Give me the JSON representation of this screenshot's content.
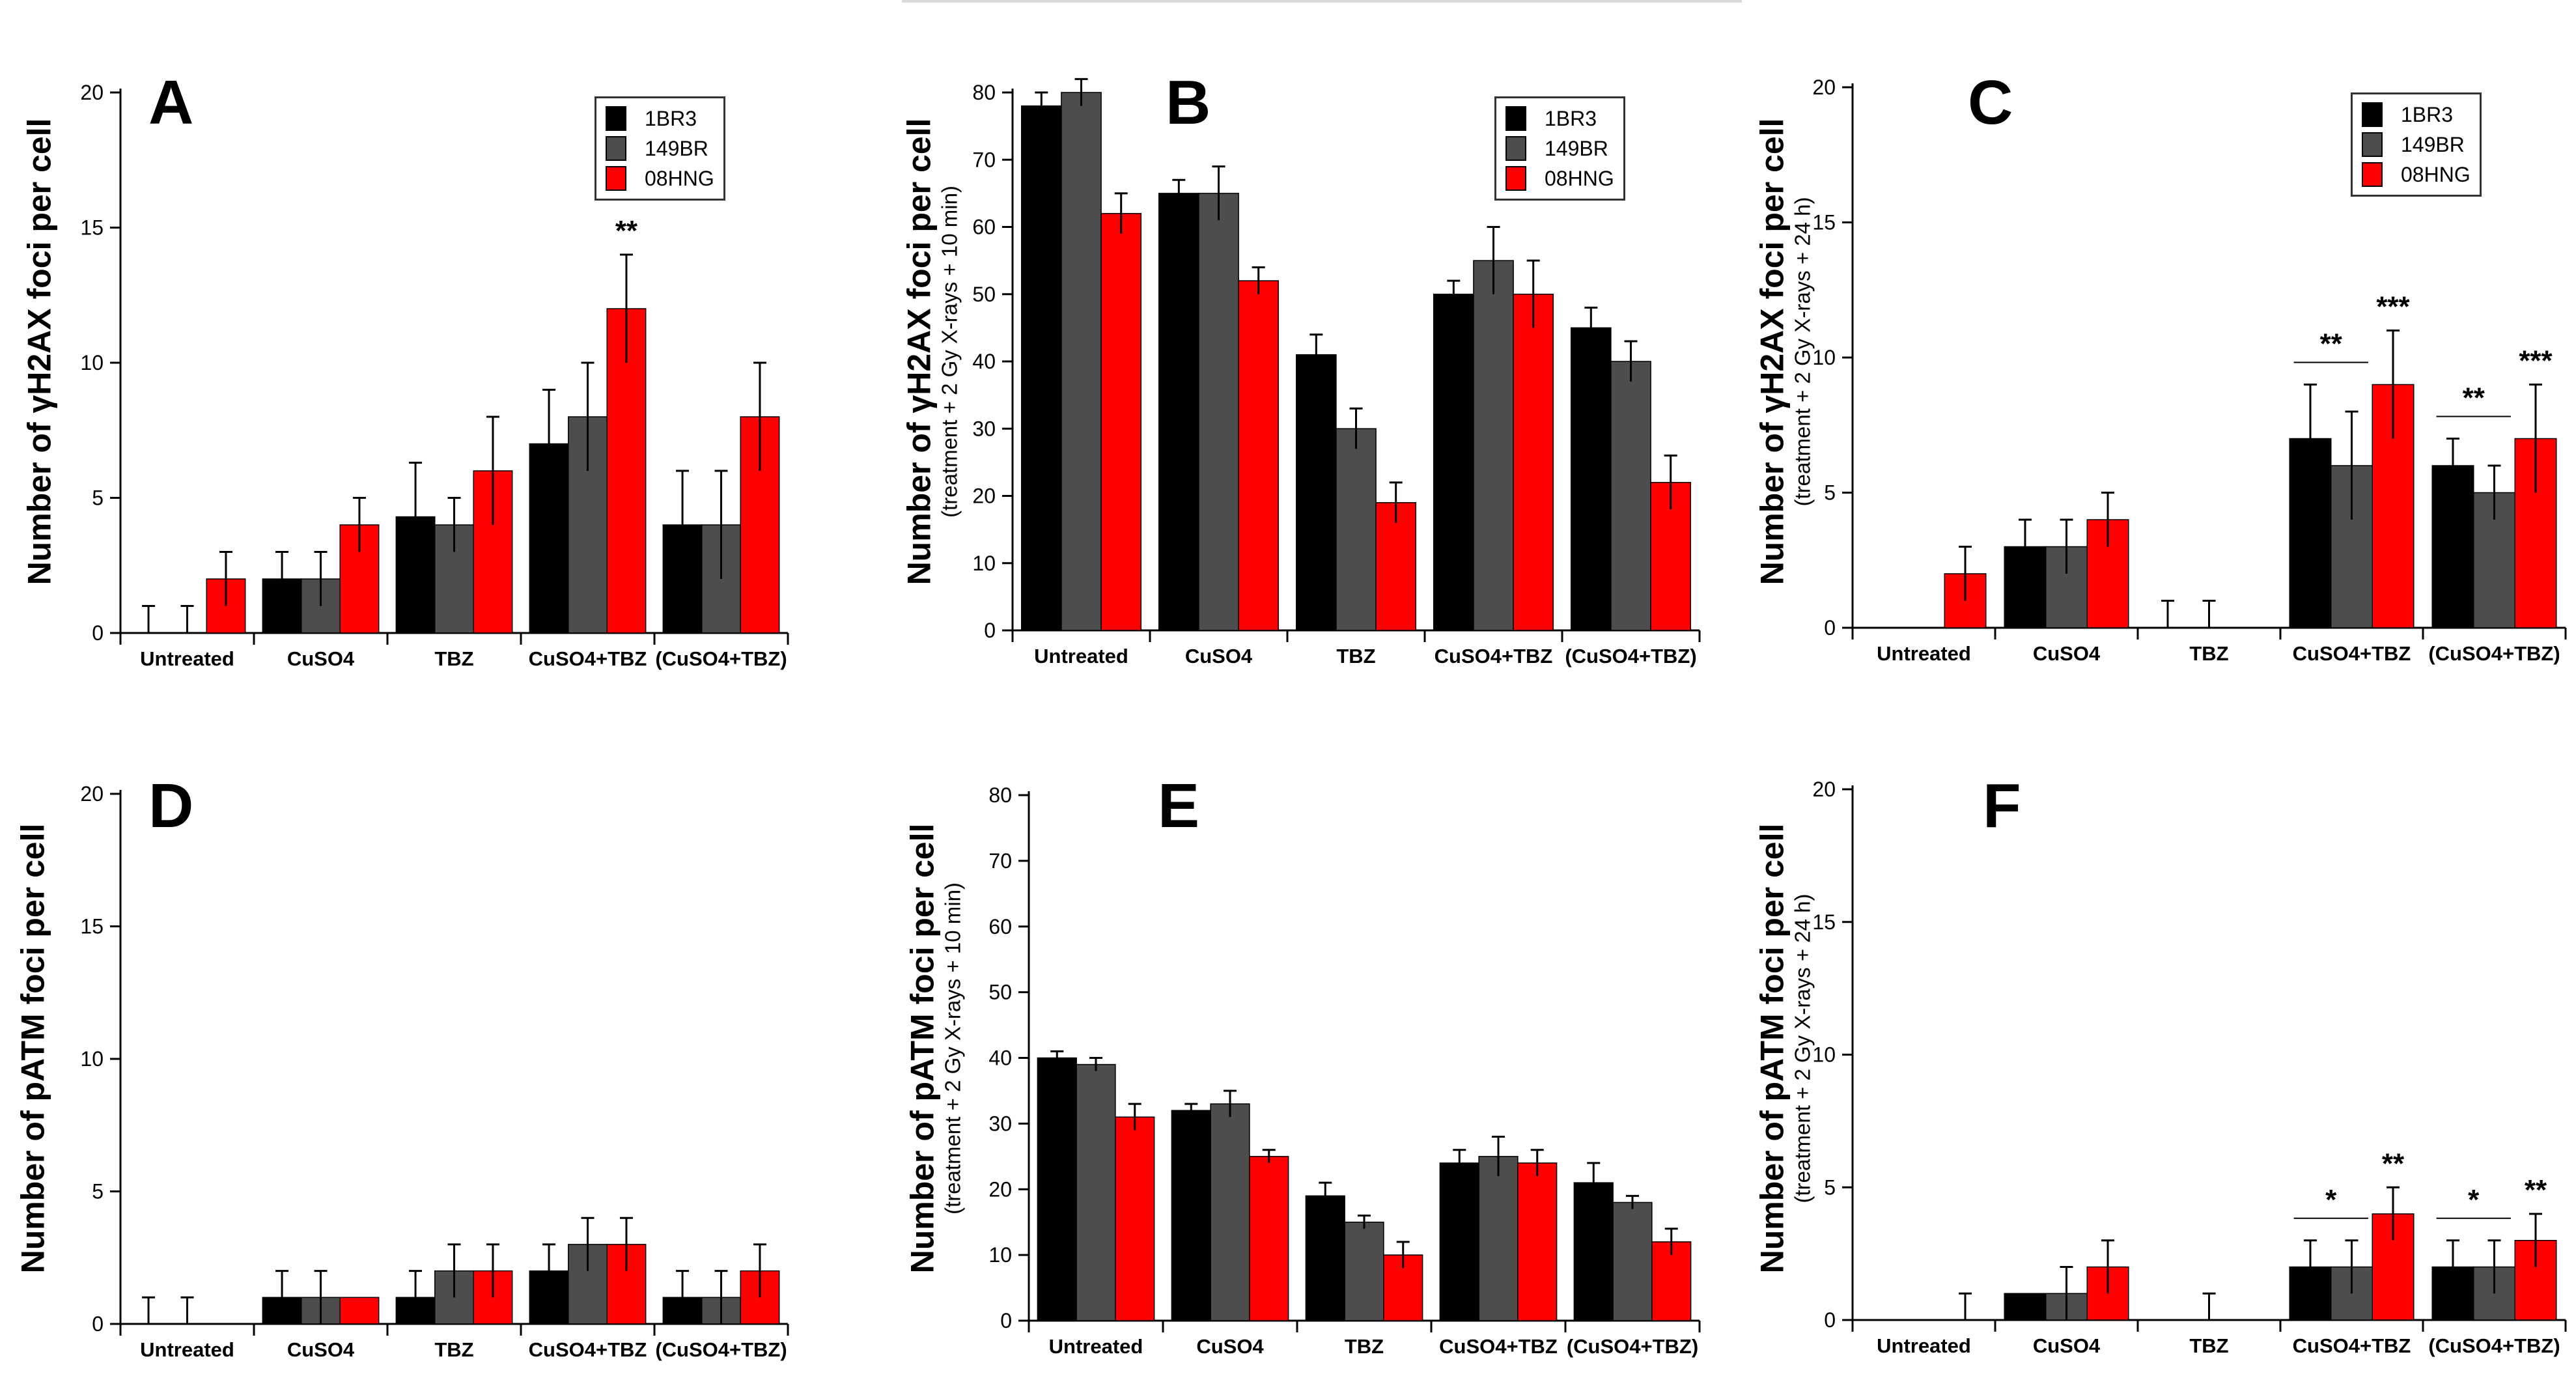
{
  "series_names": [
    "1BR3",
    "149BR",
    "08HNG"
  ],
  "colors": {
    "1BR3": "#000000",
    "149BR": "#4d4d4d",
    "08HNG": "#ff0000"
  },
  "chart_data": [
    {
      "panel": "A",
      "type": "bar",
      "ylabel": "Number of γH2AX foci per cell",
      "ylabel_sub": "",
      "ylim": [
        0,
        20
      ],
      "yticks": [
        0,
        5,
        10,
        15,
        20
      ],
      "categories": [
        "Untreated",
        "CuSO4",
        "TBZ",
        "CuSO4+TBZ",
        "(CuSO4+TBZ)"
      ],
      "legend": true,
      "legend_position": "top-right",
      "series": [
        {
          "name": "1BR3",
          "values": [
            0,
            2,
            4.3,
            7,
            4
          ],
          "errors": [
            1,
            1,
            2,
            2,
            2
          ]
        },
        {
          "name": "149BR",
          "values": [
            0,
            2,
            4,
            8,
            4
          ],
          "errors": [
            1,
            1,
            1,
            2,
            2
          ]
        },
        {
          "name": "08HNG",
          "values": [
            2,
            4,
            6,
            12,
            8
          ],
          "errors": [
            1,
            1,
            2,
            2,
            2
          ]
        }
      ],
      "annotations": [
        {
          "text": "**",
          "category": 3,
          "series": 2
        }
      ],
      "brackets": []
    },
    {
      "panel": "B",
      "type": "bar",
      "ylabel": "Number of γH2AX foci per cell",
      "ylabel_sub": "(treatment + 2 Gy X-rays + 10 min)",
      "ylim": [
        0,
        80
      ],
      "yticks": [
        0,
        10,
        20,
        30,
        40,
        50,
        60,
        70,
        80
      ],
      "categories": [
        "Untreated",
        "CuSO4",
        "TBZ",
        "CuSO4+TBZ",
        "(CuSO4+TBZ)"
      ],
      "legend": true,
      "legend_position": "top-right",
      "series": [
        {
          "name": "1BR3",
          "values": [
            78,
            65,
            41,
            50,
            45
          ],
          "errors": [
            2,
            2,
            3,
            2,
            3
          ]
        },
        {
          "name": "149BR",
          "values": [
            80,
            65,
            30,
            55,
            40
          ],
          "errors": [
            2,
            4,
            3,
            5,
            3
          ]
        },
        {
          "name": "08HNG",
          "values": [
            62,
            52,
            19,
            50,
            22
          ],
          "errors": [
            3,
            2,
            3,
            5,
            4
          ]
        }
      ],
      "annotations": [],
      "brackets": []
    },
    {
      "panel": "C",
      "type": "bar",
      "ylabel": "Number of γH2AX foci per cell",
      "ylabel_sub": "(treatment + 2 Gy X-rays + 24 h)",
      "ylim": [
        0,
        20
      ],
      "yticks": [
        0,
        5,
        10,
        15,
        20
      ],
      "categories": [
        "Untreated",
        "CuSO4",
        "TBZ",
        "CuSO4+TBZ",
        "(CuSO4+TBZ)"
      ],
      "legend": true,
      "legend_position": "top-right",
      "series": [
        {
          "name": "1BR3",
          "values": [
            0,
            3,
            0,
            7,
            6
          ],
          "errors": [
            0,
            1,
            1,
            2,
            1
          ]
        },
        {
          "name": "149BR",
          "values": [
            0,
            3,
            0,
            6,
            5
          ],
          "errors": [
            0,
            1,
            1,
            2,
            1
          ]
        },
        {
          "name": "08HNG",
          "values": [
            2,
            4,
            0,
            9,
            7
          ],
          "errors": [
            1,
            1,
            0,
            2,
            2
          ]
        }
      ],
      "annotations": [
        {
          "text": "***",
          "category": 3,
          "series": 2
        },
        {
          "text": "***",
          "category": 4,
          "series": 2
        }
      ],
      "brackets": [
        {
          "text": "**",
          "category": 3,
          "from": 0,
          "to": 1
        },
        {
          "text": "**",
          "category": 4,
          "from": 0,
          "to": 1
        }
      ]
    },
    {
      "panel": "D",
      "type": "bar",
      "ylabel": "Number of pATM foci per cell",
      "ylabel_sub": "",
      "ylim": [
        0,
        20
      ],
      "yticks": [
        0,
        5,
        10,
        15,
        20
      ],
      "categories": [
        "Untreated",
        "CuSO4",
        "TBZ",
        "CuSO4+TBZ",
        "(CuSO4+TBZ)"
      ],
      "legend": false,
      "legend_position": "",
      "series": [
        {
          "name": "1BR3",
          "values": [
            0,
            1,
            1,
            2,
            1
          ],
          "errors": [
            1,
            1,
            1,
            1,
            1
          ]
        },
        {
          "name": "149BR",
          "values": [
            0,
            1,
            2,
            3,
            1
          ],
          "errors": [
            1,
            1,
            1,
            1,
            1
          ]
        },
        {
          "name": "08HNG",
          "values": [
            0,
            1,
            2,
            3,
            2
          ],
          "errors": [
            0,
            0,
            1,
            1,
            1
          ]
        }
      ],
      "annotations": [],
      "brackets": []
    },
    {
      "panel": "E",
      "type": "bar",
      "ylabel": "Number of pATM foci per cell",
      "ylabel_sub": "(treatment + 2 Gy X-rays + 10 min)",
      "ylim": [
        0,
        80
      ],
      "yticks": [
        0,
        10,
        20,
        30,
        40,
        50,
        60,
        70,
        80
      ],
      "categories": [
        "Untreated",
        "CuSO4",
        "TBZ",
        "CuSO4+TBZ",
        "(CuSO4+TBZ)"
      ],
      "legend": false,
      "legend_position": "",
      "series": [
        {
          "name": "1BR3",
          "values": [
            40,
            32,
            19,
            24,
            21
          ],
          "errors": [
            1,
            1,
            2,
            2,
            3
          ]
        },
        {
          "name": "149BR",
          "values": [
            39,
            33,
            15,
            25,
            18
          ],
          "errors": [
            1,
            2,
            1,
            3,
            1
          ]
        },
        {
          "name": "08HNG",
          "values": [
            31,
            25,
            10,
            24,
            12
          ],
          "errors": [
            2,
            1,
            2,
            2,
            2
          ]
        }
      ],
      "annotations": [],
      "brackets": []
    },
    {
      "panel": "F",
      "type": "bar",
      "ylabel": "Number of pATM foci per cell",
      "ylabel_sub": "(treatment + 2 Gy X-rays + 24 h)",
      "ylim": [
        0,
        20
      ],
      "yticks": [
        0,
        5,
        10,
        15,
        20
      ],
      "categories": [
        "Untreated",
        "CuSO4",
        "TBZ",
        "CuSO4+TBZ",
        "(CuSO4+TBZ)"
      ],
      "legend": false,
      "legend_position": "",
      "series": [
        {
          "name": "1BR3",
          "values": [
            0,
            1,
            0,
            2,
            2
          ],
          "errors": [
            0,
            0,
            0,
            1,
            1
          ]
        },
        {
          "name": "149BR",
          "values": [
            0,
            1,
            0,
            2,
            2
          ],
          "errors": [
            0,
            1,
            1,
            1,
            1
          ]
        },
        {
          "name": "08HNG",
          "values": [
            0,
            2,
            0,
            4,
            3
          ],
          "errors": [
            1,
            1,
            0,
            1,
            1
          ]
        }
      ],
      "annotations": [
        {
          "text": "**",
          "category": 3,
          "series": 2
        },
        {
          "text": "**",
          "category": 4,
          "series": 2
        }
      ],
      "brackets": [
        {
          "text": "*",
          "category": 3,
          "from": 0,
          "to": 1
        },
        {
          "text": "*",
          "category": 4,
          "from": 0,
          "to": 1
        }
      ]
    }
  ]
}
